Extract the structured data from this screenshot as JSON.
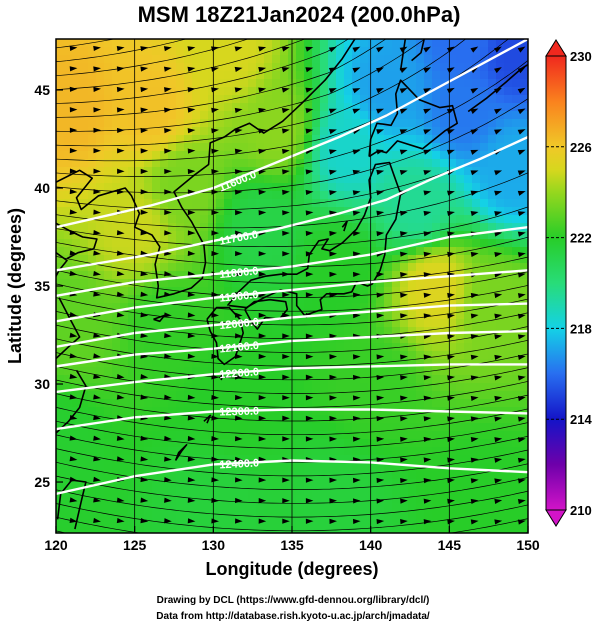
{
  "chart_data": {
    "type": "heatmap",
    "title": "MSM 18Z21Jan2024 (200.0hPa)",
    "xlabel": "Longitude (degrees)",
    "ylabel": "Latitude  (degrees)",
    "xlim": [
      120,
      150
    ],
    "ylim": [
      22.4,
      47.6
    ],
    "x_ticks": [
      120,
      125,
      130,
      135,
      140,
      145,
      150
    ],
    "x_tick_labels": [
      "120",
      "125",
      "130",
      "135",
      "140",
      "145",
      "150"
    ],
    "y_ticks": [
      25,
      30,
      35,
      40,
      45
    ],
    "y_tick_labels": [
      "25",
      "30",
      "35",
      "40",
      "45"
    ],
    "grid": true,
    "colorbar": {
      "min": 210,
      "max": 230,
      "ticks": [
        210,
        214,
        218,
        222,
        226,
        230
      ],
      "tick_labels": [
        "210",
        "214",
        "218",
        "222",
        "226",
        "230"
      ],
      "extend": "both",
      "placement": "right"
    },
    "shading_anchors": [
      {
        "lon": 121,
        "lat": 44,
        "value": 226.5
      },
      {
        "lon": 126,
        "lat": 44,
        "value": 226.2
      },
      {
        "lon": 131,
        "lat": 47,
        "value": 225
      },
      {
        "lon": 134,
        "lat": 43,
        "value": 223.8
      },
      {
        "lon": 125,
        "lat": 38,
        "value": 224.8
      },
      {
        "lon": 121,
        "lat": 33,
        "value": 223
      },
      {
        "lon": 127,
        "lat": 33,
        "value": 222.2
      },
      {
        "lon": 120,
        "lat": 27,
        "value": 221.8
      },
      {
        "lon": 130,
        "lat": 24,
        "value": 221.5
      },
      {
        "lon": 138,
        "lat": 24,
        "value": 221.5
      },
      {
        "lon": 147,
        "lat": 24,
        "value": 222
      },
      {
        "lon": 133,
        "lat": 38,
        "value": 221.2
      },
      {
        "lon": 138.5,
        "lat": 42,
        "value": 218.5
      },
      {
        "lon": 141,
        "lat": 45,
        "value": 217
      },
      {
        "lon": 146,
        "lat": 44,
        "value": 216.2
      },
      {
        "lon": 149,
        "lat": 47,
        "value": 215.2
      },
      {
        "lon": 146,
        "lat": 47.5,
        "value": 216
      },
      {
        "lon": 149,
        "lat": 41,
        "value": 217.2
      },
      {
        "lon": 143,
        "lat": 39,
        "value": 219.5
      },
      {
        "lon": 138,
        "lat": 36,
        "value": 222
      },
      {
        "lon": 144,
        "lat": 35,
        "value": 225.2
      },
      {
        "lon": 148,
        "lat": 34,
        "value": 223.5
      },
      {
        "lon": 140,
        "lat": 30,
        "value": 222.3
      },
      {
        "lon": 128,
        "lat": 40,
        "value": 223.5
      },
      {
        "lon": 131,
        "lat": 29,
        "value": 222
      }
    ],
    "contours": [
      {
        "label": "11600.0",
        "points": [
          [
            120,
            38.0
          ],
          [
            126,
            39.1
          ],
          [
            130,
            40.0
          ],
          [
            134,
            41.3
          ],
          [
            138,
            42.6
          ],
          [
            141,
            43.7
          ],
          [
            144,
            45.0
          ],
          [
            147,
            46.3
          ],
          [
            150,
            47.6
          ]
        ]
      },
      {
        "label": "11700.0",
        "points": [
          [
            120,
            35.8
          ],
          [
            126,
            36.6
          ],
          [
            130,
            37.3
          ],
          [
            134,
            37.9
          ],
          [
            138,
            38.7
          ],
          [
            141,
            39.4
          ],
          [
            144,
            40.5
          ],
          [
            147,
            41.5
          ],
          [
            150,
            42.6
          ]
        ]
      },
      {
        "label": "11800.0",
        "points": [
          [
            120,
            34.5
          ],
          [
            125,
            35.2
          ],
          [
            130,
            35.6
          ],
          [
            135,
            36.0
          ],
          [
            140,
            36.6
          ],
          [
            145,
            37.5
          ],
          [
            150,
            38.0
          ]
        ]
      },
      {
        "label": "11900.0",
        "points": [
          [
            120,
            33.2
          ],
          [
            125,
            33.9
          ],
          [
            130,
            34.4
          ],
          [
            135,
            34.8
          ],
          [
            140,
            35.2
          ],
          [
            145,
            35.5
          ],
          [
            150,
            35.8
          ]
        ]
      },
      {
        "label": "12000.0",
        "points": [
          [
            120,
            31.9
          ],
          [
            125,
            32.6
          ],
          [
            130,
            33.0
          ],
          [
            135,
            33.4
          ],
          [
            140,
            33.7
          ],
          [
            145,
            34.0
          ],
          [
            150,
            34.1
          ]
        ]
      },
      {
        "label": "12100.0",
        "points": [
          [
            120,
            30.9
          ],
          [
            125,
            31.5
          ],
          [
            130,
            31.8
          ],
          [
            135,
            32.2
          ],
          [
            140,
            32.4
          ],
          [
            145,
            32.6
          ],
          [
            150,
            32.7
          ]
        ]
      },
      {
        "label": "12200.0",
        "points": [
          [
            120,
            29.6
          ],
          [
            125,
            30.1
          ],
          [
            130,
            30.5
          ],
          [
            135,
            30.8
          ],
          [
            140,
            30.9
          ],
          [
            145,
            31.0
          ],
          [
            150,
            31.0
          ]
        ]
      },
      {
        "label": "12300.0",
        "points": [
          [
            120,
            27.7
          ],
          [
            125,
            28.3
          ],
          [
            130,
            28.6
          ],
          [
            135,
            28.7
          ],
          [
            140,
            28.7
          ],
          [
            145,
            28.6
          ],
          [
            150,
            28.5
          ]
        ]
      },
      {
        "label": "12400.0",
        "points": [
          [
            120,
            24.4
          ],
          [
            125,
            25.3
          ],
          [
            130,
            25.9
          ],
          [
            135,
            26.1
          ],
          [
            140,
            26.0
          ],
          [
            145,
            25.7
          ],
          [
            150,
            25.5
          ]
        ]
      }
    ]
  },
  "credits": {
    "line1": "Drawing by DCL (https://www.gfd-dennou.org/library/dcl/)",
    "line2": "Data from http://database.rish.kyoto-u.ac.jp/arch/jmadata/"
  },
  "colors": {
    "contour": "#ffffff",
    "coastline": "#000000",
    "streamline": "#000000",
    "grid": "#000000"
  }
}
